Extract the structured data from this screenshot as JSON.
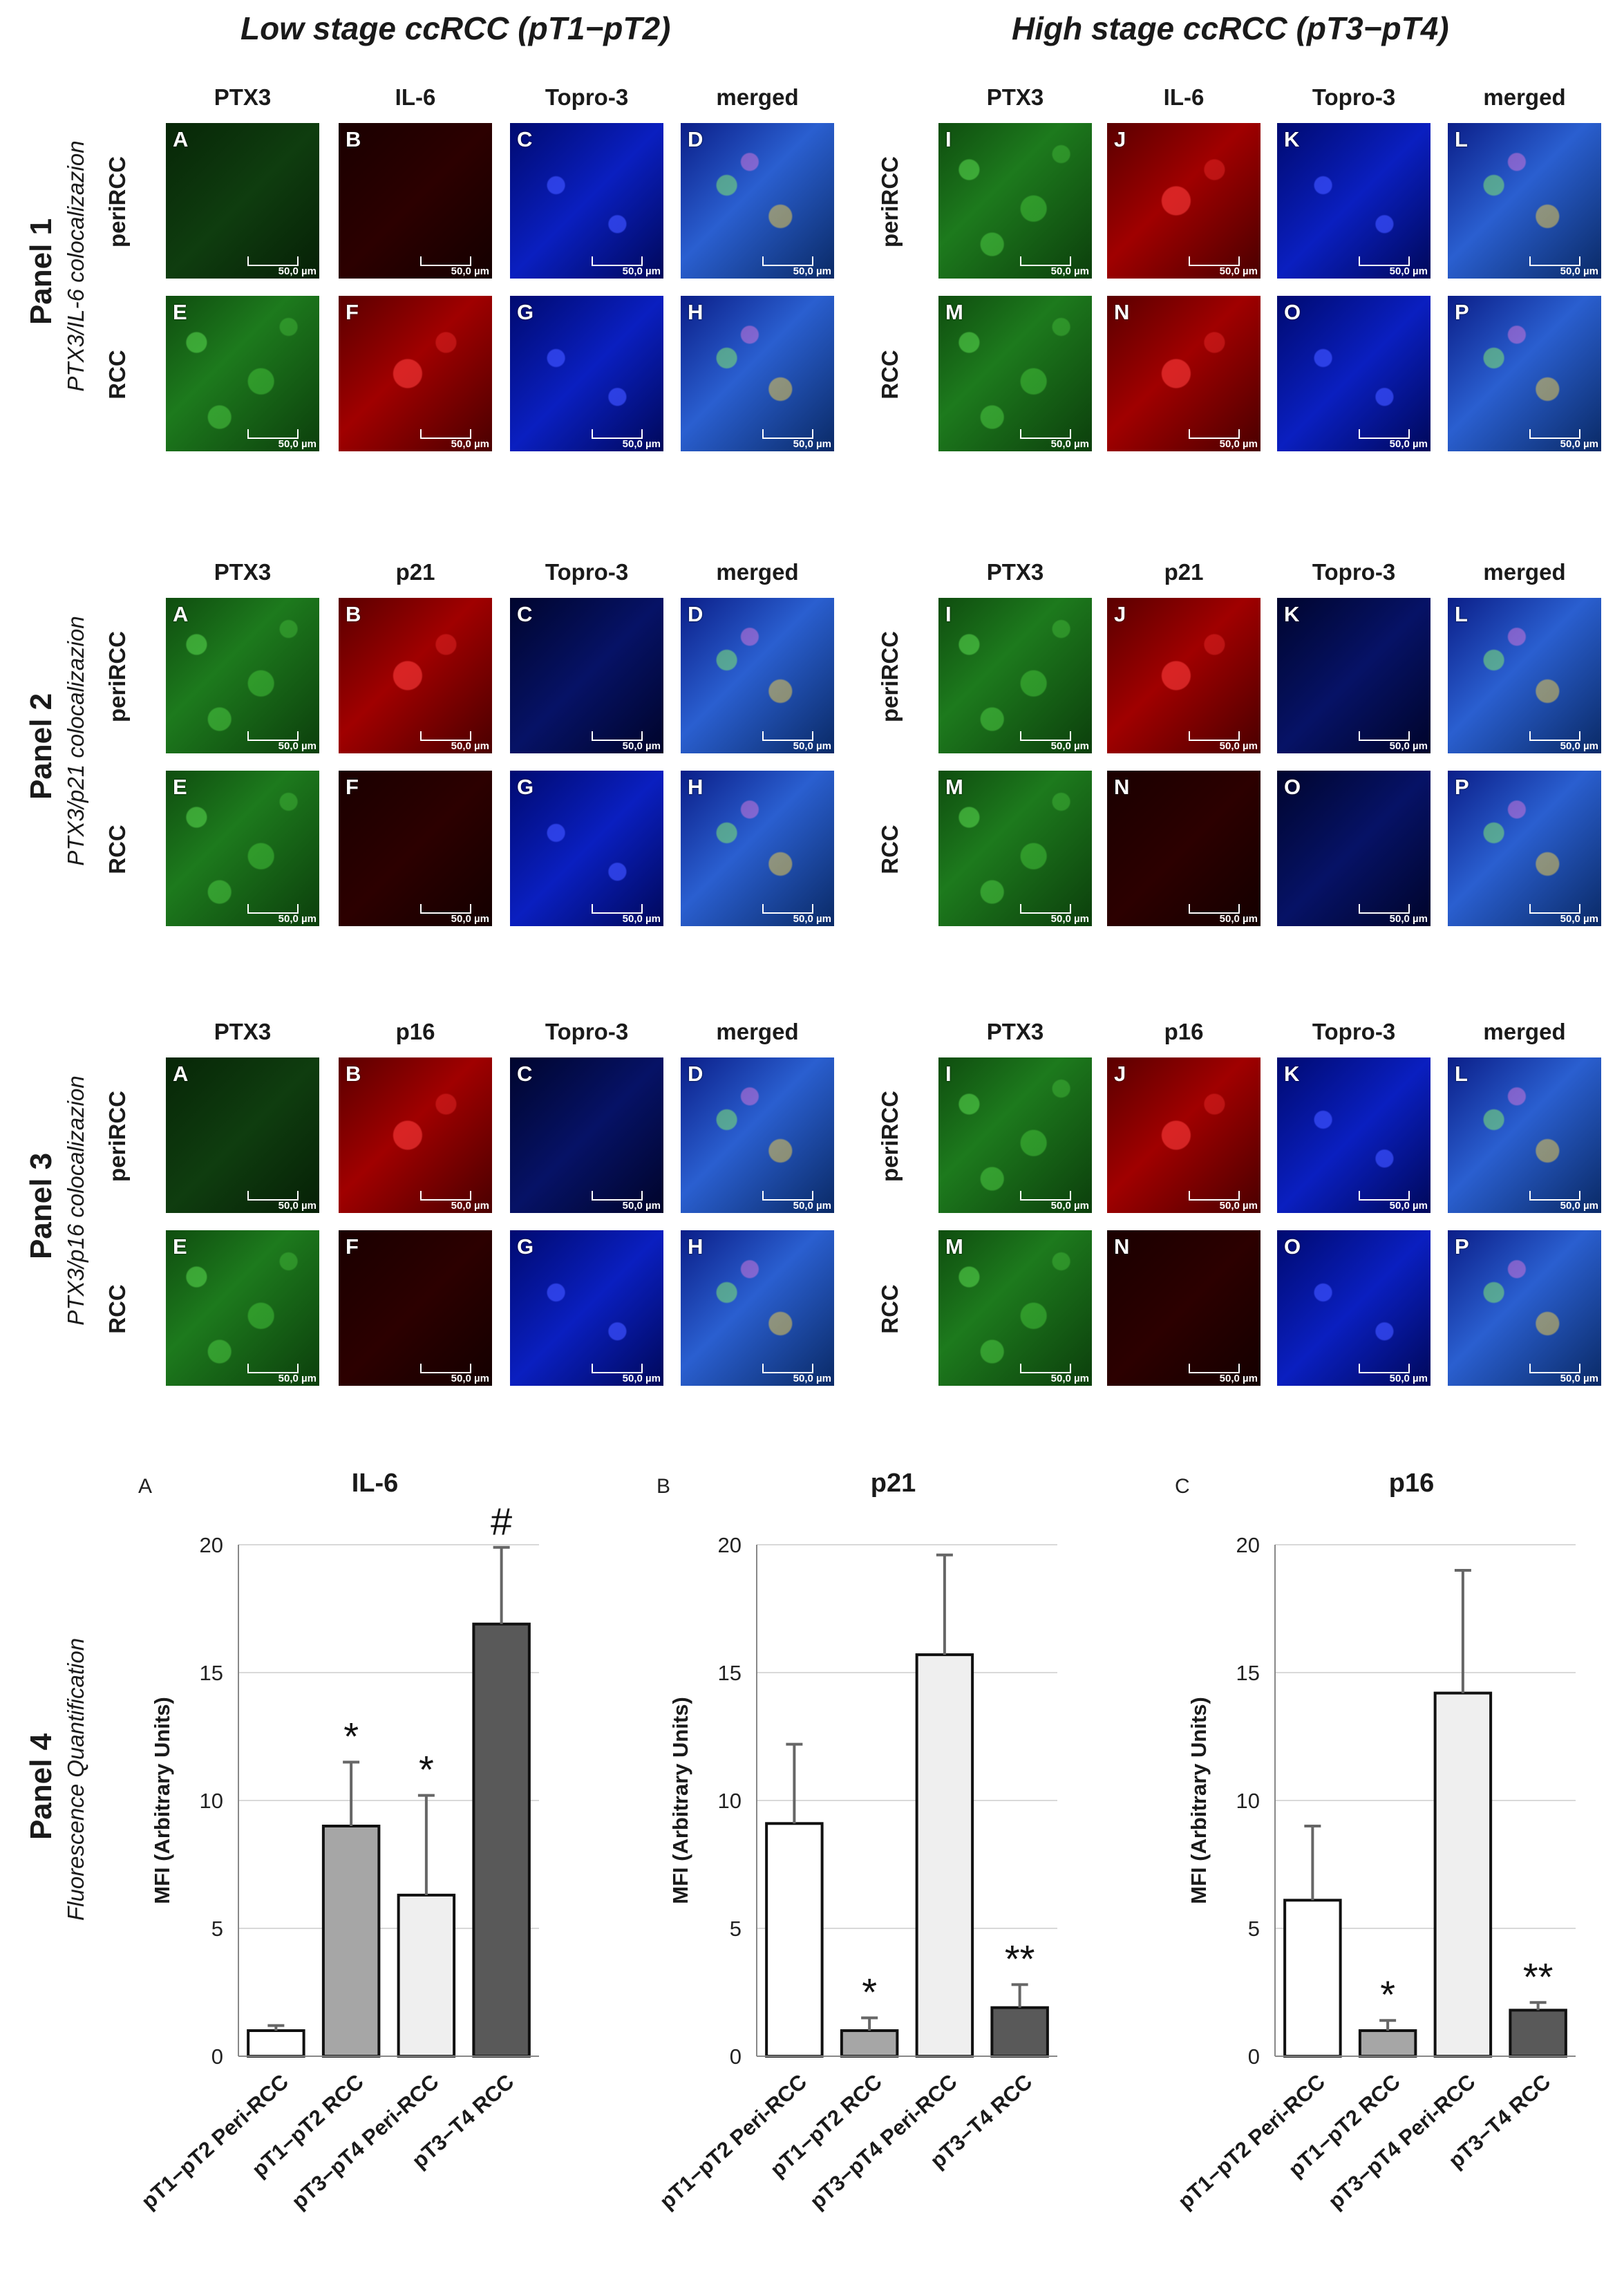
{
  "stage_titles": {
    "low": "Low stage ccRCC (pT1−pT2)",
    "high": "High stage ccRCC (pT3−pT4)"
  },
  "row_labels": {
    "peri": "periRCC",
    "rcc": "RCC"
  },
  "scale_bar_text": "50,0 µm",
  "panels": [
    {
      "name": "Panel 1",
      "subtitle": "PTX3/IL-6 colocalizazion",
      "columns": [
        "PTX3",
        "IL-6",
        "Topro-3",
        "merged"
      ],
      "low_letters": [
        "A",
        "B",
        "C",
        "D",
        "E",
        "F",
        "G",
        "H"
      ],
      "high_letters": [
        "I",
        "J",
        "K",
        "L",
        "M",
        "N",
        "O",
        "P"
      ]
    },
    {
      "name": "Panel 2",
      "subtitle": "PTX3/p21 colocalizazion",
      "columns": [
        "PTX3",
        "p21",
        "Topro-3",
        "merged"
      ],
      "low_letters": [
        "A",
        "B",
        "C",
        "D",
        "E",
        "F",
        "G",
        "H"
      ],
      "high_letters": [
        "I",
        "J",
        "K",
        "L",
        "M",
        "N",
        "O",
        "P"
      ]
    },
    {
      "name": "Panel 3",
      "subtitle": "PTX3/p16 colocalizazion",
      "columns": [
        "PTX3",
        "p16",
        "Topro-3",
        "merged"
      ],
      "low_letters": [
        "A",
        "B",
        "C",
        "D",
        "E",
        "F",
        "G",
        "H"
      ],
      "high_letters": [
        "I",
        "J",
        "K",
        "L",
        "M",
        "N",
        "O",
        "P"
      ]
    }
  ],
  "panel4": {
    "name": "Panel 4",
    "subtitle": "Fluorescence Quantification"
  },
  "chart_data": [
    {
      "type": "bar",
      "letter": "A",
      "title": "IL-6",
      "ylabel": "MFI (Arbitrary Units)",
      "ylim": [
        0,
        20
      ],
      "yticks": [
        0,
        5,
        10,
        15,
        20
      ],
      "grid": true,
      "categories": [
        "pT1−pT2 Peri-RCC",
        "pT1−pT2 RCC",
        "pT3−pT4 Peri-RCC",
        "pT3−T4 RCC"
      ],
      "values": [
        1.0,
        9.0,
        6.3,
        16.9
      ],
      "errors": [
        0.2,
        2.5,
        3.9,
        3.0
      ],
      "annotations": [
        "",
        "*",
        "*",
        "#"
      ],
      "bar_colors": [
        "#ffffff",
        "#a6a6a6",
        "#efefef",
        "#595959"
      ]
    },
    {
      "type": "bar",
      "letter": "B",
      "title": "p21",
      "ylabel": "MFI (Arbitrary Units)",
      "ylim": [
        0,
        20
      ],
      "yticks": [
        0,
        5,
        10,
        15,
        20
      ],
      "grid": true,
      "categories": [
        "pT1−pT2 Peri-RCC",
        "pT1−pT2 RCC",
        "pT3−pT4 Peri-RCC",
        "pT3−T4 RCC"
      ],
      "values": [
        9.1,
        1.0,
        15.7,
        1.9
      ],
      "errors": [
        3.1,
        0.5,
        3.9,
        0.9
      ],
      "annotations": [
        "",
        "*",
        "",
        "**"
      ],
      "bar_colors": [
        "#ffffff",
        "#a6a6a6",
        "#efefef",
        "#595959"
      ]
    },
    {
      "type": "bar",
      "letter": "C",
      "title": "p16",
      "ylabel": "MFI (Arbitrary Units)",
      "ylim": [
        0,
        20
      ],
      "yticks": [
        0,
        5,
        10,
        15,
        20
      ],
      "grid": true,
      "categories": [
        "pT1−pT2 Peri-RCC",
        "pT1−pT2 RCC",
        "pT3−pT4 Peri-RCC",
        "pT3−T4 RCC"
      ],
      "values": [
        6.1,
        1.0,
        14.2,
        1.8
      ],
      "errors": [
        2.9,
        0.4,
        4.8,
        0.3
      ],
      "annotations": [
        "",
        "*",
        "",
        "**"
      ],
      "bar_colors": [
        "#ffffff",
        "#a6a6a6",
        "#efefef",
        "#595959"
      ]
    }
  ]
}
